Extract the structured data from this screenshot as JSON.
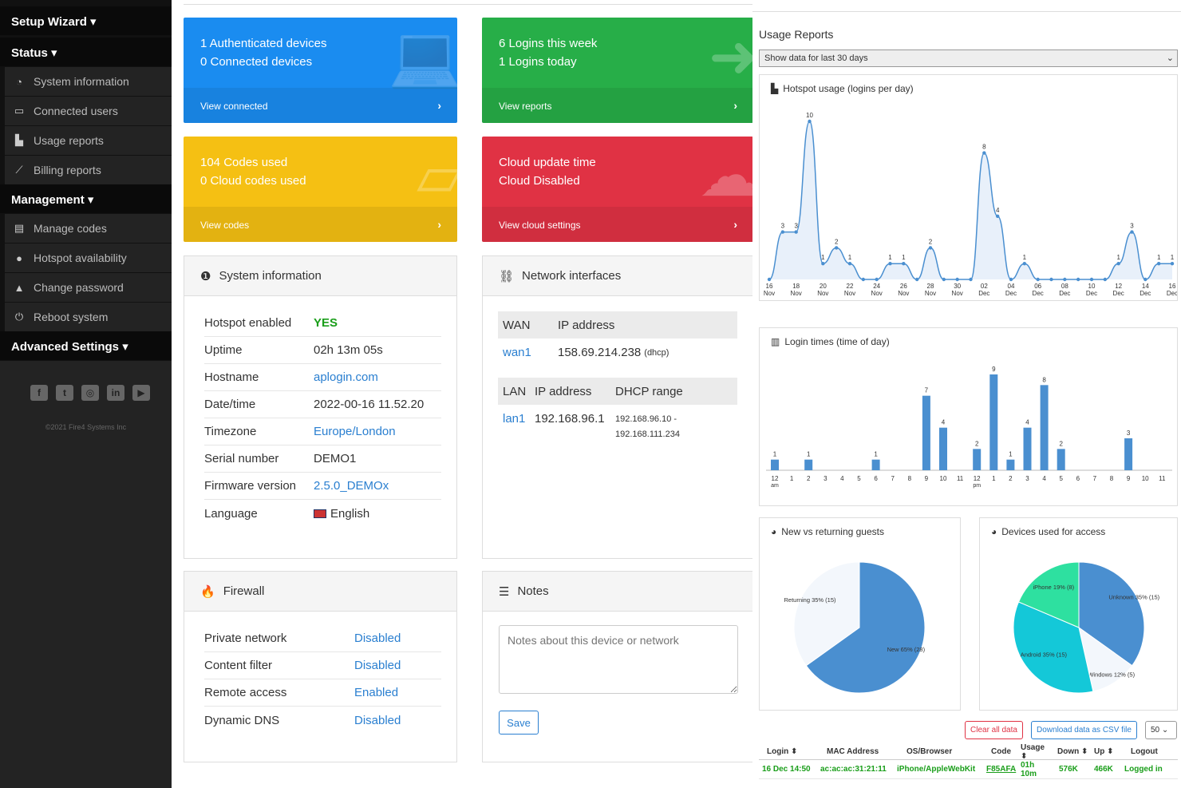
{
  "sidebar": {
    "setup_wizard": "Setup Wizard ▾",
    "status": "Status ▾",
    "status_items": [
      "System information",
      "Connected users",
      "Usage reports",
      "Billing reports"
    ],
    "management": "Management ▾",
    "management_items": [
      "Manage codes",
      "Hotspot availability",
      "Change password",
      "Reboot system"
    ],
    "advanced": "Advanced Settings ▾",
    "copyright": "©2021 Fire4 Systems Inc"
  },
  "tiles": [
    {
      "line1": "1 Authenticated devices",
      "line2": "0 Connected devices",
      "link": "View connected",
      "color": "#1a8cf0"
    },
    {
      "line1": "6 Logins this week",
      "line2": "1 Logins today",
      "link": "View reports",
      "color": "#27ae48"
    },
    {
      "line1": "104 Codes used",
      "line2": "0 Cloud codes used",
      "link": "View codes",
      "color": "#f5c013"
    },
    {
      "line1": "Cloud update time",
      "line2": "Cloud Disabled",
      "link": "View cloud settings",
      "color": "#e03244"
    }
  ],
  "system_info": {
    "title": "System information",
    "rows": [
      {
        "k": "Hotspot enabled",
        "v": "YES"
      },
      {
        "k": "Uptime",
        "v": "02h 13m 05s"
      },
      {
        "k": "Hostname",
        "v": "aplogin.com"
      },
      {
        "k": "Date/time",
        "v": "2022-00-16 11.52.20"
      },
      {
        "k": "Timezone",
        "v": "Europe/London"
      },
      {
        "k": "Serial number",
        "v": "DEMO1"
      },
      {
        "k": "Firmware version",
        "v": "2.5.0_DEMOx"
      },
      {
        "k": "Language",
        "v": "English"
      }
    ]
  },
  "network": {
    "title": "Network interfaces",
    "wan_h1": "WAN",
    "wan_h2": "IP address",
    "wan_name": "wan1",
    "wan_ip": "158.69.214.238",
    "wan_mode": "(dhcp)",
    "lan_h1": "LAN",
    "lan_h2": "IP address",
    "lan_h3": "DHCP range",
    "lan_name": "lan1",
    "lan_ip": "192.168.96.1",
    "lan_range1": "192.168.96.10 -",
    "lan_range2": "192.168.111.234"
  },
  "firewall": {
    "title": "Firewall",
    "rows": [
      {
        "k": "Private network",
        "v": "Disabled"
      },
      {
        "k": "Content filter",
        "v": "Disabled"
      },
      {
        "k": "Remote access",
        "v": "Enabled"
      },
      {
        "k": "Dynamic DNS",
        "v": "Disabled"
      }
    ]
  },
  "notes": {
    "title": "Notes",
    "placeholder": "Notes about this device or network",
    "save": "Save"
  },
  "usage": {
    "title": "Usage Reports",
    "select": "Show data for last 30 days",
    "chart1_title": "Hotspot usage (logins per day)",
    "chart2_title": "Login times (time of day)",
    "chart3_title": "New vs returning guests",
    "chart4_title": "Devices used for access",
    "clear": "Clear all data",
    "download": "Download data as CSV file",
    "page_size": "50",
    "table_headers": [
      "Login ⬍",
      "MAC Address",
      "OS/Browser",
      "Code",
      "Usage ⬍",
      "Down ⬍",
      "Up ⬍",
      "Logout"
    ],
    "table_row": [
      "16 Dec 14:50",
      "ac:ac:ac:31:21:11",
      "iPhone/AppleWebKit",
      "F85AFA",
      "01h 10m",
      "576K",
      "466K",
      "Logged in"
    ]
  },
  "chart_data": [
    {
      "type": "area",
      "title": "Hotspot usage (logins per day)",
      "x": [
        "16 Nov",
        "17 Nov",
        "18 Nov",
        "19 Nov",
        "20 Nov",
        "21 Nov",
        "22 Nov",
        "23 Nov",
        "24 Nov",
        "25 Nov",
        "26 Nov",
        "27 Nov",
        "28 Nov",
        "29 Nov",
        "30 Nov",
        "01 Dec",
        "02 Dec",
        "03 Dec",
        "04 Dec",
        "05 Dec",
        "06 Dec",
        "07 Dec",
        "08 Dec",
        "09 Dec",
        "10 Dec",
        "11 Dec",
        "12 Dec",
        "13 Dec",
        "14 Dec",
        "15 Dec",
        "16 Dec"
      ],
      "tick_labels": [
        [
          "16",
          "Nov"
        ],
        [
          "18",
          "Nov"
        ],
        [
          "20",
          "Nov"
        ],
        [
          "22",
          "Nov"
        ],
        [
          "24",
          "Nov"
        ],
        [
          "26",
          "Nov"
        ],
        [
          "28",
          "Nov"
        ],
        [
          "30",
          "Nov"
        ],
        [
          "02",
          "Dec"
        ],
        [
          "04",
          "Dec"
        ],
        [
          "06",
          "Dec"
        ],
        [
          "08",
          "Dec"
        ],
        [
          "10",
          "Dec"
        ],
        [
          "12",
          "Dec"
        ],
        [
          "14",
          "Dec"
        ],
        [
          "16",
          "Dec"
        ]
      ],
      "values": [
        0,
        3,
        3,
        10,
        1,
        2,
        1,
        0,
        0,
        1,
        1,
        0,
        2,
        0,
        0,
        0,
        8,
        4,
        0,
        1,
        0,
        0,
        0,
        0,
        0,
        0,
        1,
        3,
        0,
        1,
        1
      ],
      "ylim": [
        0,
        10
      ]
    },
    {
      "type": "bar",
      "title": "Login times (time of day)",
      "categories": [
        "12 am",
        "1",
        "2",
        "3",
        "4",
        "5",
        "6",
        "7",
        "8",
        "9",
        "10",
        "11",
        "12 pm",
        "1",
        "2",
        "3",
        "4",
        "5",
        "6",
        "7",
        "8",
        "9",
        "10",
        "11"
      ],
      "values": [
        1,
        0,
        1,
        0,
        0,
        0,
        1,
        0,
        0,
        7,
        4,
        0,
        2,
        9,
        1,
        4,
        8,
        2,
        0,
        0,
        0,
        3,
        0,
        0
      ],
      "ylim": [
        0,
        9
      ]
    },
    {
      "type": "pie",
      "title": "New vs returning guests",
      "labels": [
        "New 65% (28)",
        "Returning 35% (15)"
      ],
      "values": [
        28,
        15
      ],
      "colors": [
        "#4a8fd0",
        "#f3f7fc"
      ]
    },
    {
      "type": "pie",
      "title": "Devices used for access",
      "labels": [
        "Unknown 35% (15)",
        "Windows 12% (5)",
        "Android 35% (15)",
        "iPhone 19% (8)"
      ],
      "values": [
        15,
        5,
        15,
        8
      ],
      "colors": [
        "#4a8fd0",
        "#f3f7fc",
        "#14c8d8",
        "#2ee0a0"
      ]
    }
  ]
}
